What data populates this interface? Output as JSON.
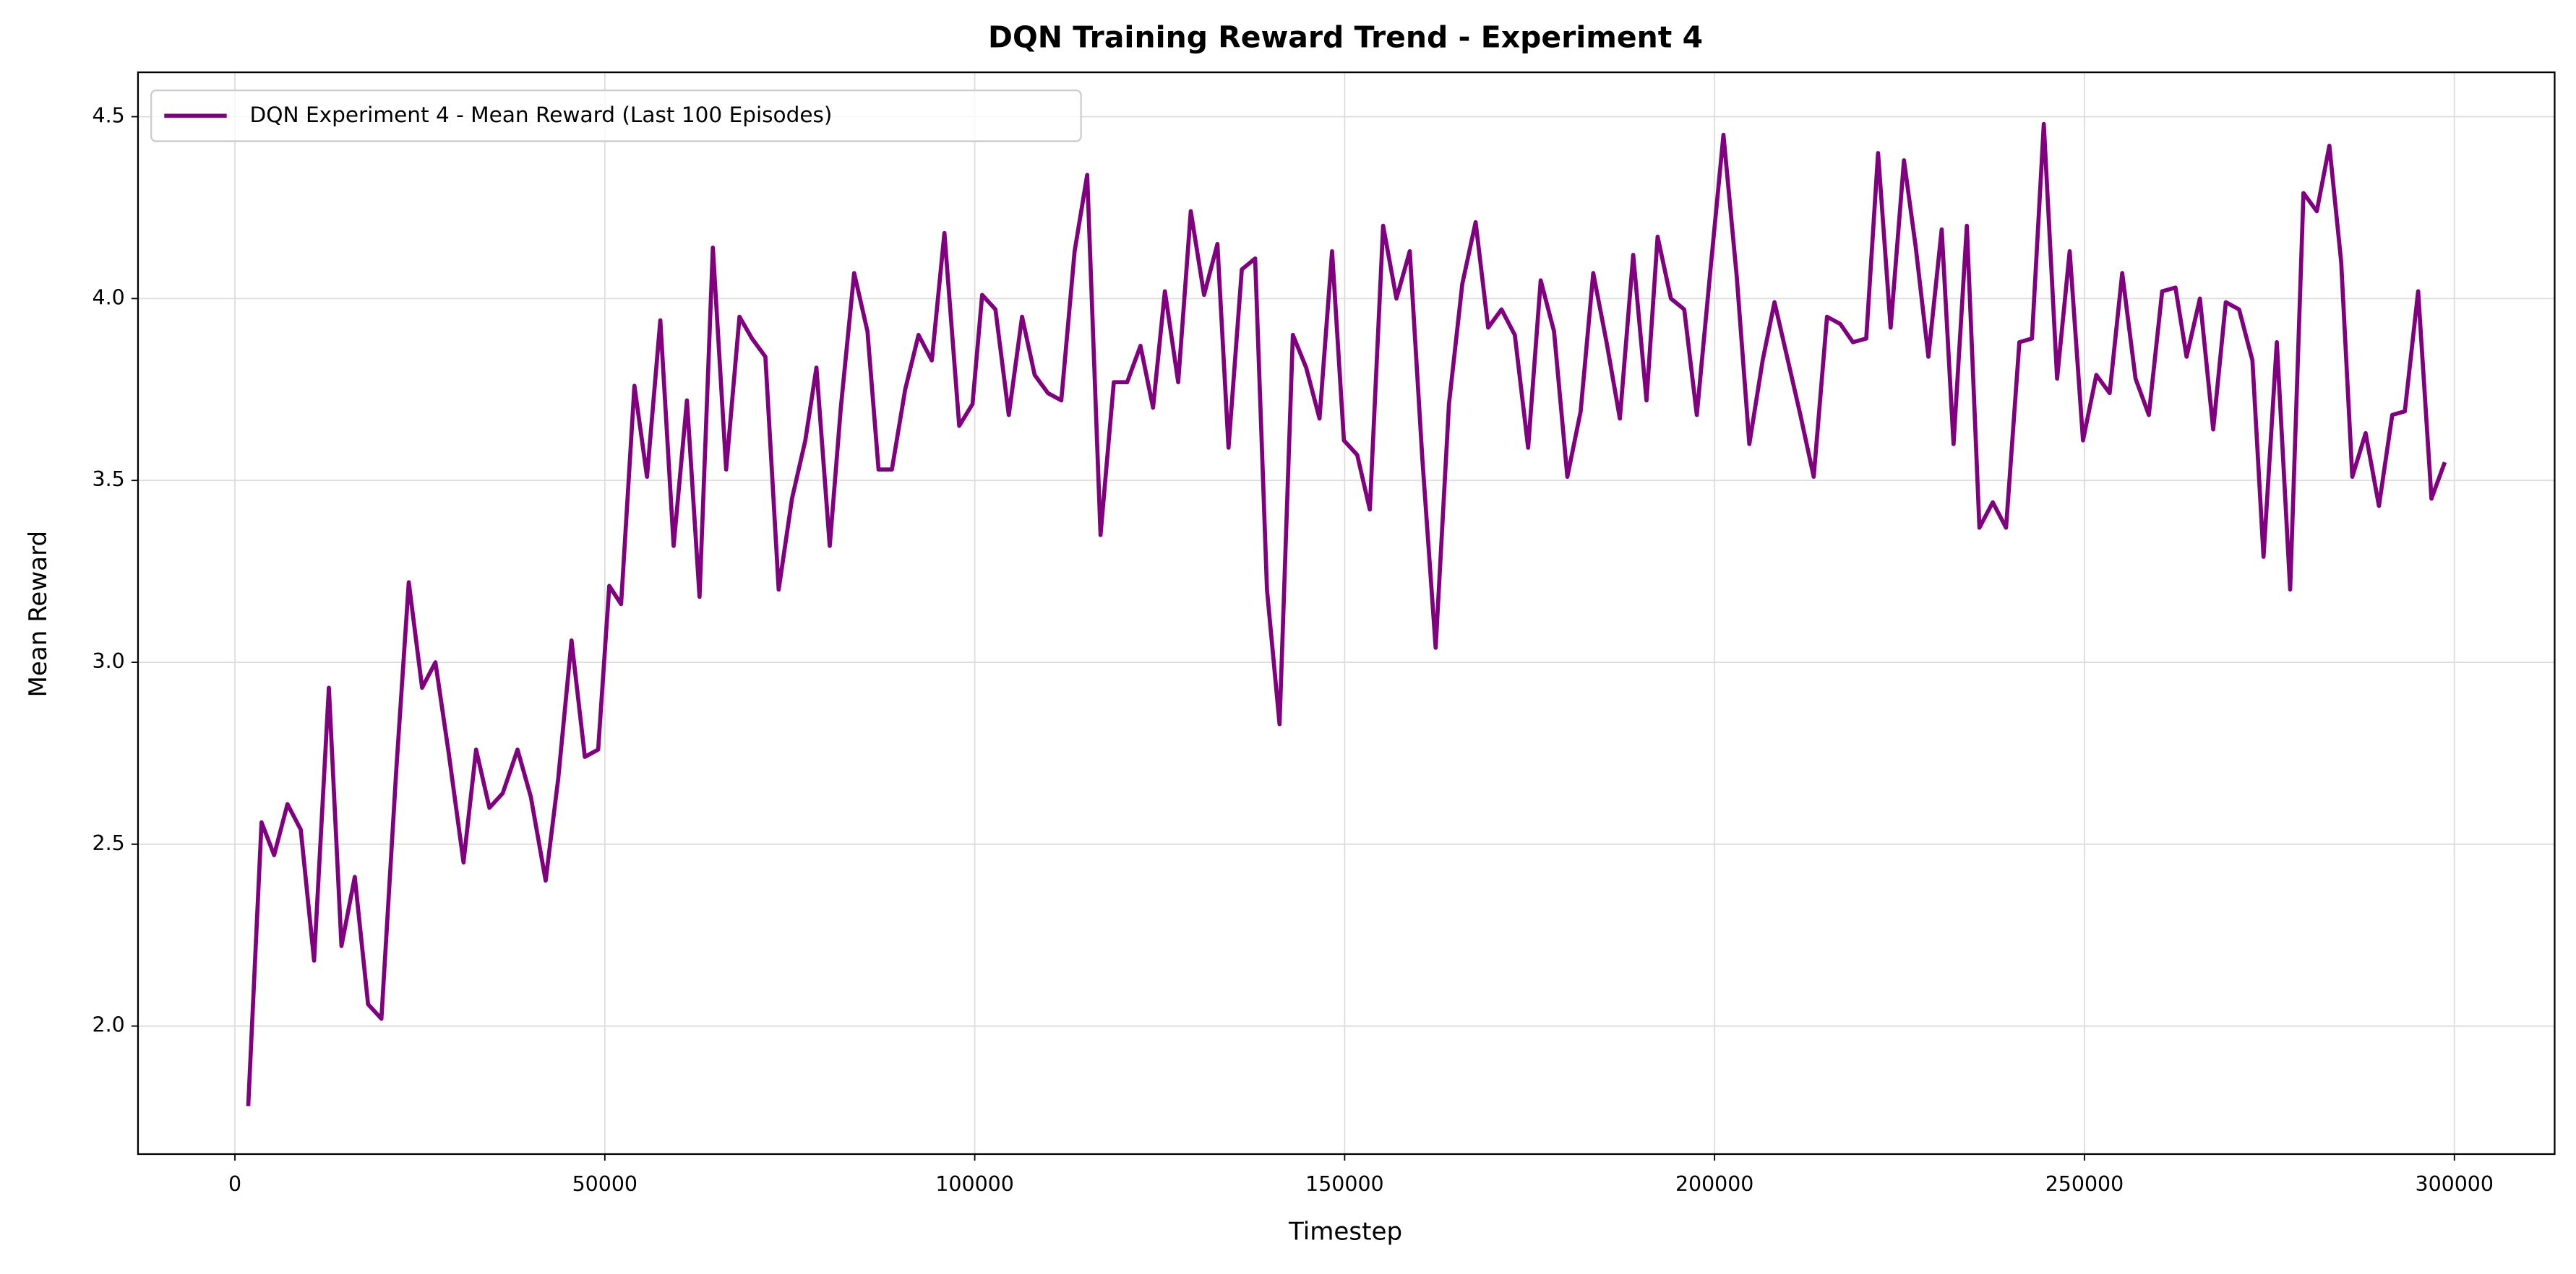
{
  "chart_data": {
    "type": "line",
    "title": "DQN Training Reward Trend - Experiment 4",
    "xlabel": "Timestep",
    "ylabel": "Mean Reward",
    "xlim": [
      -13100,
      313550
    ],
    "ylim": [
      1.648,
      4.622
    ],
    "xticks": [
      0,
      50000,
      100000,
      150000,
      200000,
      250000,
      300000
    ],
    "yticks": [
      {
        "value": 2,
        "label": "2.0"
      },
      2.5,
      {
        "value": 3,
        "label": "3.0"
      },
      3.5,
      {
        "value": 4,
        "label": "4.0"
      },
      4.5
    ],
    "grid": true,
    "legend": "upper left",
    "x": [
      1800,
      3600,
      5300,
      7100,
      8900,
      10700,
      12700,
      14400,
      16200,
      18000,
      19800,
      21800,
      23500,
      25300,
      27100,
      28900,
      30900,
      32600,
      34400,
      36200,
      38200,
      40000,
      42000,
      43700,
      45500,
      47300,
      49100,
      50600,
      52200,
      54000,
      55700,
      57500,
      59300,
      61100,
      62800,
      64600,
      66400,
      68200,
      69900,
      71700,
      73500,
      75300,
      77100,
      78600,
      80400,
      81900,
      83700,
      85500,
      87000,
      88800,
      90600,
      92400,
      94200,
      95900,
      97900,
      99700,
      101000,
      102800,
      104600,
      106400,
      108100,
      109900,
      111700,
      113500,
      115200,
      117000,
      118800,
      120600,
      122400,
      124100,
      125700,
      127500,
      129200,
      131000,
      132800,
      134300,
      136100,
      137900,
      139500,
      141200,
      143000,
      144800,
      146600,
      148300,
      149900,
      151700,
      153400,
      155200,
      157000,
      158800,
      160500,
      162300,
      164100,
      165900,
      167700,
      169400,
      171200,
      173000,
      174800,
      176500,
      178300,
      180100,
      181900,
      183600,
      185400,
      187200,
      189000,
      190800,
      192300,
      194100,
      195900,
      197600,
      199400,
      201200,
      203000,
      204700,
      206500,
      208100,
      209800,
      211600,
      213400,
      215200,
      217000,
      218700,
      220500,
      222100,
      223800,
      225600,
      227200,
      228900,
      230700,
      232300,
      234100,
      235800,
      237600,
      239400,
      241200,
      242900,
      244500,
      246300,
      248000,
      249800,
      251600,
      253400,
      255100,
      256900,
      258700,
      260500,
      262300,
      263800,
      265600,
      267400,
      269100,
      270900,
      272700,
      274200,
      276000,
      277800,
      279600,
      281400,
      283100,
      284700,
      286200,
      288000,
      289800,
      291600,
      293300,
      295100,
      296900,
      298700
    ],
    "series": [
      {
        "name": "DQN Experiment 4 - Mean Reward (Last 100 Episodes)",
        "color": "#800080",
        "values": [
          1.78,
          2.56,
          2.47,
          2.61,
          2.54,
          2.18,
          2.93,
          2.22,
          2.41,
          2.06,
          2.02,
          2.7,
          3.22,
          2.93,
          3.0,
          2.75,
          2.45,
          2.76,
          2.6,
          2.64,
          2.76,
          2.63,
          2.4,
          2.68,
          3.06,
          2.74,
          2.76,
          3.21,
          3.16,
          3.76,
          3.51,
          3.94,
          3.32,
          3.72,
          3.18,
          4.14,
          3.53,
          3.95,
          3.89,
          3.84,
          3.2,
          3.45,
          3.61,
          3.81,
          3.32,
          3.7,
          4.07,
          3.91,
          3.53,
          3.53,
          3.75,
          3.9,
          3.83,
          4.18,
          3.65,
          3.71,
          4.01,
          3.97,
          3.68,
          3.95,
          3.79,
          3.74,
          3.72,
          4.13,
          4.34,
          3.35,
          3.77,
          3.77,
          3.87,
          3.7,
          4.02,
          3.77,
          4.24,
          4.01,
          4.15,
          3.59,
          4.08,
          4.11,
          3.2,
          2.83,
          3.9,
          3.81,
          3.67,
          4.13,
          3.61,
          3.57,
          3.42,
          4.2,
          4.0,
          4.13,
          3.56,
          3.04,
          3.71,
          4.04,
          4.21,
          3.92,
          3.97,
          3.9,
          3.59,
          4.05,
          3.91,
          3.51,
          3.69,
          4.07,
          3.88,
          3.67,
          4.12,
          3.72,
          4.17,
          4.0,
          3.97,
          3.68,
          4.07,
          4.45,
          4.06,
          3.6,
          3.83,
          3.99,
          3.84,
          3.68,
          3.51,
          3.95,
          3.93,
          3.88,
          3.89,
          4.4,
          3.92,
          4.38,
          4.14,
          3.84,
          4.19,
          3.6,
          4.2,
          3.37,
          3.44,
          3.37,
          3.88,
          3.89,
          4.48,
          3.78,
          4.13,
          3.61,
          3.79,
          3.74,
          4.07,
          3.78,
          3.68,
          4.02,
          4.03,
          3.84,
          4.0,
          3.64,
          3.99,
          3.97,
          3.83,
          3.29,
          3.88,
          3.2,
          4.29,
          4.24,
          4.42,
          4.1,
          3.51,
          3.63,
          3.43,
          3.68,
          3.69,
          4.02,
          3.45,
          3.55
        ]
      }
    ]
  }
}
